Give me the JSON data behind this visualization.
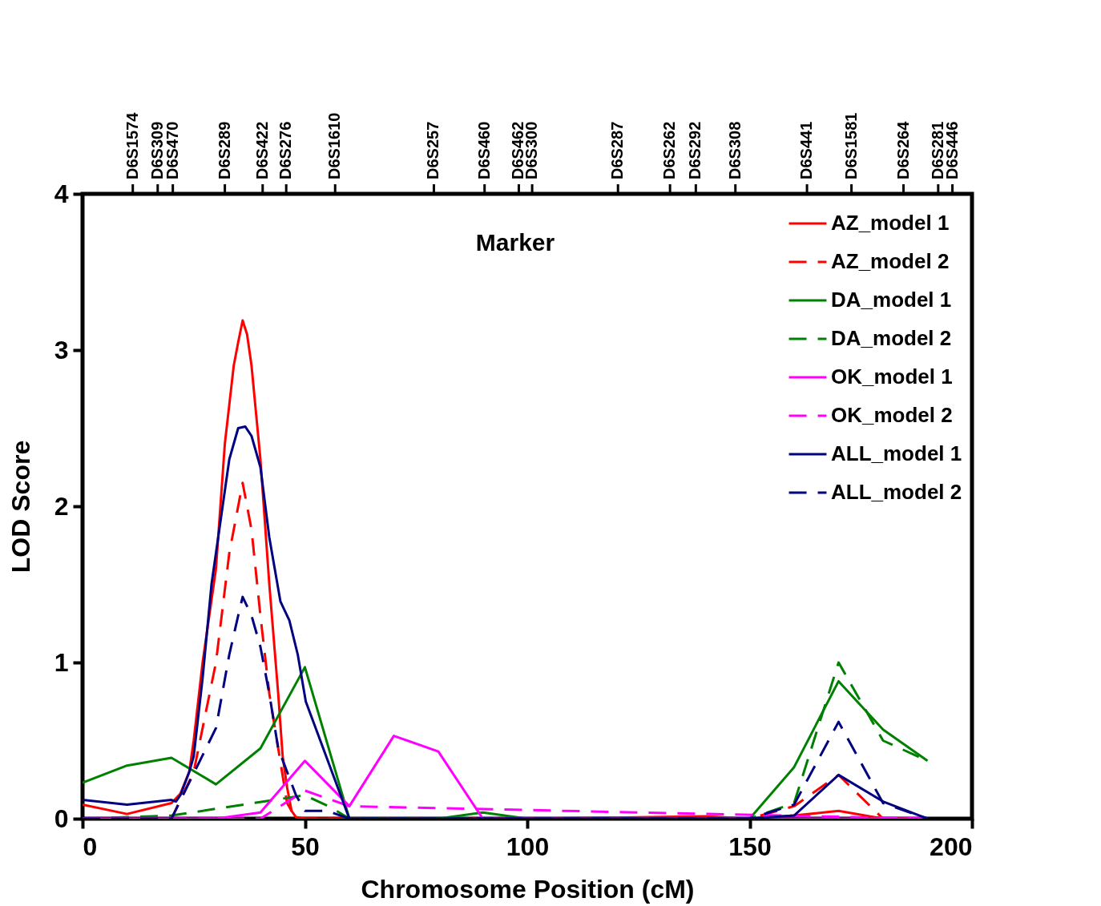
{
  "chart_data": {
    "type": "line",
    "xlabel": "Chromosome Position (cM)",
    "ylabel": "LOD  Score",
    "xlim": [
      0,
      200
    ],
    "xticks": [
      0,
      50,
      100,
      150,
      200
    ],
    "ylim": [
      0,
      4
    ],
    "yticks": [
      0,
      1,
      2,
      3,
      4
    ],
    "annotations": [
      "Marker",
      "D6S1574",
      "D6S309",
      "D6S470",
      "D6S289",
      "D6S422",
      "D6S276",
      "D6S1610",
      "D6S257",
      "D6S460",
      "D6S462",
      "D6S300",
      "D6S287",
      "D6S262",
      "D6S292",
      "D6S308",
      "D6S441",
      "D6S1581",
      "D6S264",
      "D6S281",
      "D6S446"
    ],
    "grid": false,
    "legend": "top right",
    "series": [
      {
        "name": "AZ_model 1",
        "color": "#ff0000",
        "line_style": "solid",
        "x": [
          0,
          10,
          20,
          22,
          24,
          25,
          27,
          30,
          32,
          34,
          35,
          36,
          37,
          38,
          40,
          42,
          44,
          45,
          46,
          47,
          48,
          50,
          60,
          100,
          140,
          150,
          160,
          170,
          180,
          190
        ],
        "values": [
          0.09,
          0.03,
          0.1,
          0.16,
          0.3,
          0.5,
          1.0,
          1.6,
          2.4,
          2.9,
          3.05,
          3.19,
          3.1,
          2.9,
          2.3,
          1.5,
          0.8,
          0.4,
          0.2,
          0.05,
          0.01,
          0,
          0,
          0,
          0.015,
          0,
          0.02,
          0.05,
          0,
          0
        ]
      },
      {
        "name": "AZ_model 2",
        "color": "#ff0000",
        "line_style": "dashed",
        "x": [
          0,
          10,
          20,
          25,
          30,
          33,
          36,
          38,
          40,
          42,
          44,
          46,
          48,
          50,
          150,
          160,
          170,
          180,
          190
        ],
        "values": [
          0,
          0,
          0,
          0.3,
          1.0,
          1.7,
          2.15,
          1.85,
          1.3,
          0.8,
          0.45,
          0.1,
          0,
          0,
          0,
          0.08,
          0.28,
          0,
          0
        ]
      },
      {
        "name": "DA_model 1",
        "color": "#008000",
        "line_style": "solid",
        "x": [
          0,
          10,
          20,
          30,
          40,
          50,
          60,
          80,
          90,
          100,
          150,
          160,
          170,
          180,
          190
        ],
        "values": [
          0.23,
          0.34,
          0.39,
          0.22,
          0.45,
          0.97,
          0,
          0,
          0.04,
          0,
          0,
          0.33,
          0.88,
          0.57,
          0.37
        ]
      },
      {
        "name": "DA_model 2",
        "color": "#008000",
        "line_style": "dashed",
        "x": [
          0,
          20,
          50,
          56,
          60,
          150,
          160,
          170,
          180,
          190
        ],
        "values": [
          0,
          0.02,
          0.15,
          0.07,
          0,
          0,
          0.1,
          1.0,
          0.5,
          0.37
        ]
      },
      {
        "name": "OK_model 1",
        "color": "#ff00ff",
        "line_style": "solid",
        "x": [
          0,
          30,
          40,
          50,
          60,
          70,
          80,
          90,
          190
        ],
        "values": [
          0,
          0,
          0.04,
          0.37,
          0.08,
          0.53,
          0.43,
          0,
          0
        ]
      },
      {
        "name": "OK_model 2",
        "color": "#ff00ff",
        "line_style": "dashed",
        "x": [
          0,
          40,
          50,
          56,
          60,
          190
        ],
        "values": [
          0,
          0,
          0.18,
          0.12,
          0.08,
          0
        ]
      },
      {
        "name": "ALL_model 1",
        "color": "#000080",
        "line_style": "solid",
        "x": [
          0,
          10,
          20,
          21,
          22,
          24,
          25,
          27,
          29,
          31,
          33,
          35,
          36.6,
          38,
          40,
          42,
          44.5,
          46.5,
          48.4,
          50.2,
          60,
          150,
          160,
          170,
          180,
          190
        ],
        "values": [
          0.12,
          0.09,
          0.12,
          0.11,
          0.15,
          0.3,
          0.4,
          0.9,
          1.5,
          1.9,
          2.3,
          2.5,
          2.51,
          2.45,
          2.25,
          1.8,
          1.39,
          1.27,
          1.05,
          0.75,
          0,
          0,
          0.02,
          0.28,
          0.11,
          0
        ]
      },
      {
        "name": "ALL_model 2",
        "color": "#000080",
        "line_style": "dashed",
        "x": [
          0,
          20,
          30,
          33,
          35,
          36,
          38,
          40,
          42,
          44,
          46,
          48,
          50,
          55,
          60,
          150,
          160,
          170,
          180,
          190
        ],
        "values": [
          0,
          0,
          0.58,
          1.05,
          1.3,
          1.42,
          1.3,
          1.1,
          0.8,
          0.45,
          0.3,
          0.15,
          0.05,
          0.05,
          0,
          0,
          0.09,
          0.62,
          0.1,
          0
        ]
      }
    ]
  }
}
